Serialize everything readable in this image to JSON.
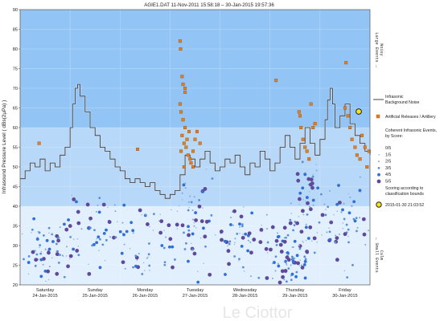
{
  "chart_data": {
    "type": "scatter",
    "title": "AGIE1.DAT   11-Nov-2011 15:58:18   –   30-Jan-2015 19:57:36",
    "ylabel": "Infrasound Pressure Level  ( dBs(2µPa) )",
    "ylim": [
      20,
      90
    ],
    "yticks": [
      20,
      25,
      30,
      35,
      40,
      45,
      50,
      55,
      60,
      65,
      70,
      75,
      80,
      85,
      90
    ],
    "x_unit": "days (Sat 24-Jan-2015 = 0)",
    "xlim": [
      0,
      7
    ],
    "grid": true,
    "day_labels": [
      {
        "x": 0.5,
        "day": "Saturday",
        "date": "24-Jan-2015"
      },
      {
        "x": 1.5,
        "day": "Sunday",
        "date": "25-Jan-2015"
      },
      {
        "x": 2.5,
        "day": "Monday",
        "date": "26-Jan-2015"
      },
      {
        "x": 3.5,
        "day": "Tuesday",
        "date": "27-Jan-2015"
      },
      {
        "x": 4.5,
        "day": "Wednesday",
        "date": "28-Jan-2015"
      },
      {
        "x": 5.5,
        "day": "Thursday",
        "date": "29-Jan-2015"
      },
      {
        "x": 6.5,
        "day": "Friday",
        "date": "30-Jan-2015"
      }
    ],
    "bands": [
      {
        "from": 60,
        "to": 90,
        "color": "#92c5f5"
      },
      {
        "from": 40,
        "to": 60,
        "color": "#b7d8f8"
      },
      {
        "from": 20,
        "to": 40,
        "color": "#e2effc"
      }
    ],
    "background_noise": {
      "name": "Infrasonic Background Noise",
      "color": "#333333",
      "points": [
        [
          0.0,
          47
        ],
        [
          0.1,
          49
        ],
        [
          0.2,
          51
        ],
        [
          0.3,
          50
        ],
        [
          0.4,
          52
        ],
        [
          0.5,
          49
        ],
        [
          0.6,
          51
        ],
        [
          0.7,
          50
        ],
        [
          0.8,
          53
        ],
        [
          0.9,
          55
        ],
        [
          1.0,
          60
        ],
        [
          1.05,
          66
        ],
        [
          1.1,
          70
        ],
        [
          1.15,
          71
        ],
        [
          1.2,
          68
        ],
        [
          1.3,
          64
        ],
        [
          1.4,
          60
        ],
        [
          1.5,
          58
        ],
        [
          1.6,
          55
        ],
        [
          1.7,
          54
        ],
        [
          1.8,
          52
        ],
        [
          1.9,
          50
        ],
        [
          2.0,
          49
        ],
        [
          2.1,
          47
        ],
        [
          2.2,
          46
        ],
        [
          2.3,
          47
        ],
        [
          2.4,
          46
        ],
        [
          2.5,
          45
        ],
        [
          2.6,
          46
        ],
        [
          2.7,
          44
        ],
        [
          2.8,
          43
        ],
        [
          2.9,
          42
        ],
        [
          3.0,
          43
        ],
        [
          3.1,
          44
        ],
        [
          3.2,
          48
        ],
        [
          3.3,
          53
        ],
        [
          3.4,
          52
        ],
        [
          3.5,
          50
        ],
        [
          3.6,
          52
        ],
        [
          3.7,
          54
        ],
        [
          3.8,
          51
        ],
        [
          3.9,
          49
        ],
        [
          4.0,
          50
        ],
        [
          4.1,
          52
        ],
        [
          4.2,
          51
        ],
        [
          4.3,
          53
        ],
        [
          4.4,
          50
        ],
        [
          4.5,
          48
        ],
        [
          4.6,
          51
        ],
        [
          4.7,
          50
        ],
        [
          4.8,
          54
        ],
        [
          4.9,
          52
        ],
        [
          5.0,
          49
        ],
        [
          5.1,
          51
        ],
        [
          5.2,
          55
        ],
        [
          5.3,
          58
        ],
        [
          5.4,
          55
        ],
        [
          5.5,
          52
        ],
        [
          5.6,
          56
        ],
        [
          5.7,
          60
        ],
        [
          5.8,
          56
        ],
        [
          5.9,
          53
        ],
        [
          6.0,
          57
        ],
        [
          6.1,
          62
        ],
        [
          6.15,
          67
        ],
        [
          6.2,
          70
        ],
        [
          6.25,
          66
        ],
        [
          6.3,
          60
        ],
        [
          6.4,
          63
        ],
        [
          6.5,
          66
        ],
        [
          6.6,
          61
        ],
        [
          6.7,
          58
        ],
        [
          6.8,
          56
        ],
        [
          6.9,
          54
        ],
        [
          7.0,
          53
        ]
      ]
    },
    "artificial": {
      "name": "Artificial Releases / Artillery",
      "color": "#e07f24",
      "points": [
        [
          0.38,
          56
        ],
        [
          2.35,
          54.5
        ],
        [
          3.2,
          82
        ],
        [
          3.21,
          80
        ],
        [
          3.24,
          73
        ],
        [
          3.26,
          71
        ],
        [
          3.3,
          69
        ],
        [
          3.2,
          66
        ],
        [
          3.22,
          64
        ],
        [
          3.26,
          62
        ],
        [
          3.3,
          60
        ],
        [
          3.24,
          58
        ],
        [
          3.28,
          56
        ],
        [
          3.32,
          55
        ],
        [
          3.36,
          53
        ],
        [
          3.4,
          52
        ],
        [
          3.22,
          54
        ],
        [
          3.34,
          57
        ],
        [
          3.38,
          59
        ],
        [
          3.42,
          51
        ],
        [
          3.46,
          54
        ],
        [
          3.5,
          57
        ],
        [
          3.54,
          59
        ],
        [
          3.28,
          50
        ],
        [
          3.46,
          50
        ],
        [
          3.6,
          56
        ],
        [
          3.3,
          70
        ],
        [
          5.58,
          64
        ],
        [
          5.6,
          63
        ],
        [
          5.62,
          60
        ],
        [
          5.66,
          57
        ],
        [
          5.7,
          55
        ],
        [
          5.74,
          54
        ],
        [
          5.78,
          52
        ],
        [
          5.82,
          66
        ],
        [
          5.86,
          60
        ],
        [
          5.9,
          61
        ],
        [
          5.12,
          72
        ],
        [
          6.52,
          76.5
        ],
        [
          6.5,
          65
        ],
        [
          6.56,
          63
        ],
        [
          6.6,
          60
        ],
        [
          6.64,
          57
        ],
        [
          6.7,
          55
        ],
        [
          6.74,
          53
        ],
        [
          6.8,
          52
        ],
        [
          6.84,
          58
        ],
        [
          6.9,
          55
        ],
        [
          6.94,
          50
        ],
        [
          6.98,
          54
        ]
      ]
    },
    "coherent": {
      "name": "Coherent Infrasonic Events, by Score:",
      "color": "#2f68c8",
      "score_colors": {
        "1": "#9ab8e0",
        "2": "#7da6dd",
        "3": "#5a8fd8",
        "4": "#2f6fd6",
        "5": "#5f4a9a"
      },
      "score_labels": [
        "0/5",
        "1/5",
        "2/5",
        "3/5",
        "4/5",
        "5/5"
      ]
    },
    "annotations": {
      "right_top_text": "Large Events  →",
      "right_top_sub": "Noisy",
      "right_bottom_text": "←  Small Events",
      "right_bottom_sub": "Calm",
      "scoring_note": "Scoring according to classification bounds",
      "marker_time": "2015-01-30 21:03:52",
      "marker_color": "#f7e21b",
      "watermark": "Le Ciottor"
    }
  },
  "legend": {
    "noise_label_1": "Infrasonic",
    "noise_label_2": "Background Noise",
    "artificial_label": "Artificial Releases / Artillery",
    "coherent_label_1": "Coherent Infrasonic Events,",
    "coherent_label_2": "by Score:",
    "scoring_1": "Scoring according to",
    "scoring_2": "classification bounds"
  }
}
